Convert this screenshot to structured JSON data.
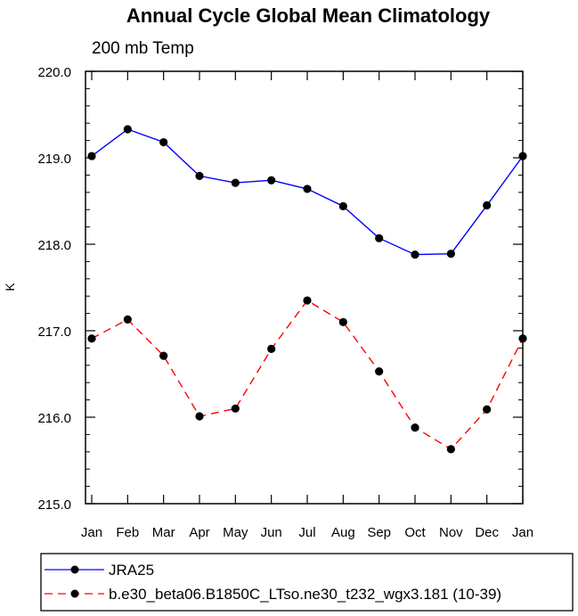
{
  "chart_data": {
    "type": "line",
    "title": "Annual Cycle Global Mean Climatology",
    "subtitle": "200 mb Temp",
    "ylabel": "K",
    "xlabel": "",
    "categories": [
      "Jan",
      "Feb",
      "Mar",
      "Apr",
      "May",
      "Jun",
      "Jul",
      "Aug",
      "Sep",
      "Oct",
      "Nov",
      "Dec",
      "Jan"
    ],
    "ylim": [
      215.0,
      220.0
    ],
    "yticks": [
      "215.0",
      "216.0",
      "217.0",
      "218.0",
      "219.0",
      "220.0"
    ],
    "grid": false,
    "legend_position": "bottom",
    "series": [
      {
        "name": "JRA25",
        "color": "#0000ff",
        "style": "solid",
        "marker": "filled-circle",
        "values": [
          219.02,
          219.33,
          219.18,
          218.79,
          218.71,
          218.74,
          218.64,
          218.44,
          218.07,
          217.88,
          217.89,
          218.45,
          219.02
        ]
      },
      {
        "name": "b.e30_beta06.B1850C_LTso.ne30_t232_wgx3.181 (10-39)",
        "color": "#ff0000",
        "style": "dashed",
        "marker": "filled-circle",
        "values": [
          216.91,
          217.13,
          216.71,
          216.01,
          216.1,
          216.79,
          217.35,
          217.1,
          216.53,
          215.88,
          215.63,
          216.09,
          216.91
        ]
      }
    ]
  }
}
